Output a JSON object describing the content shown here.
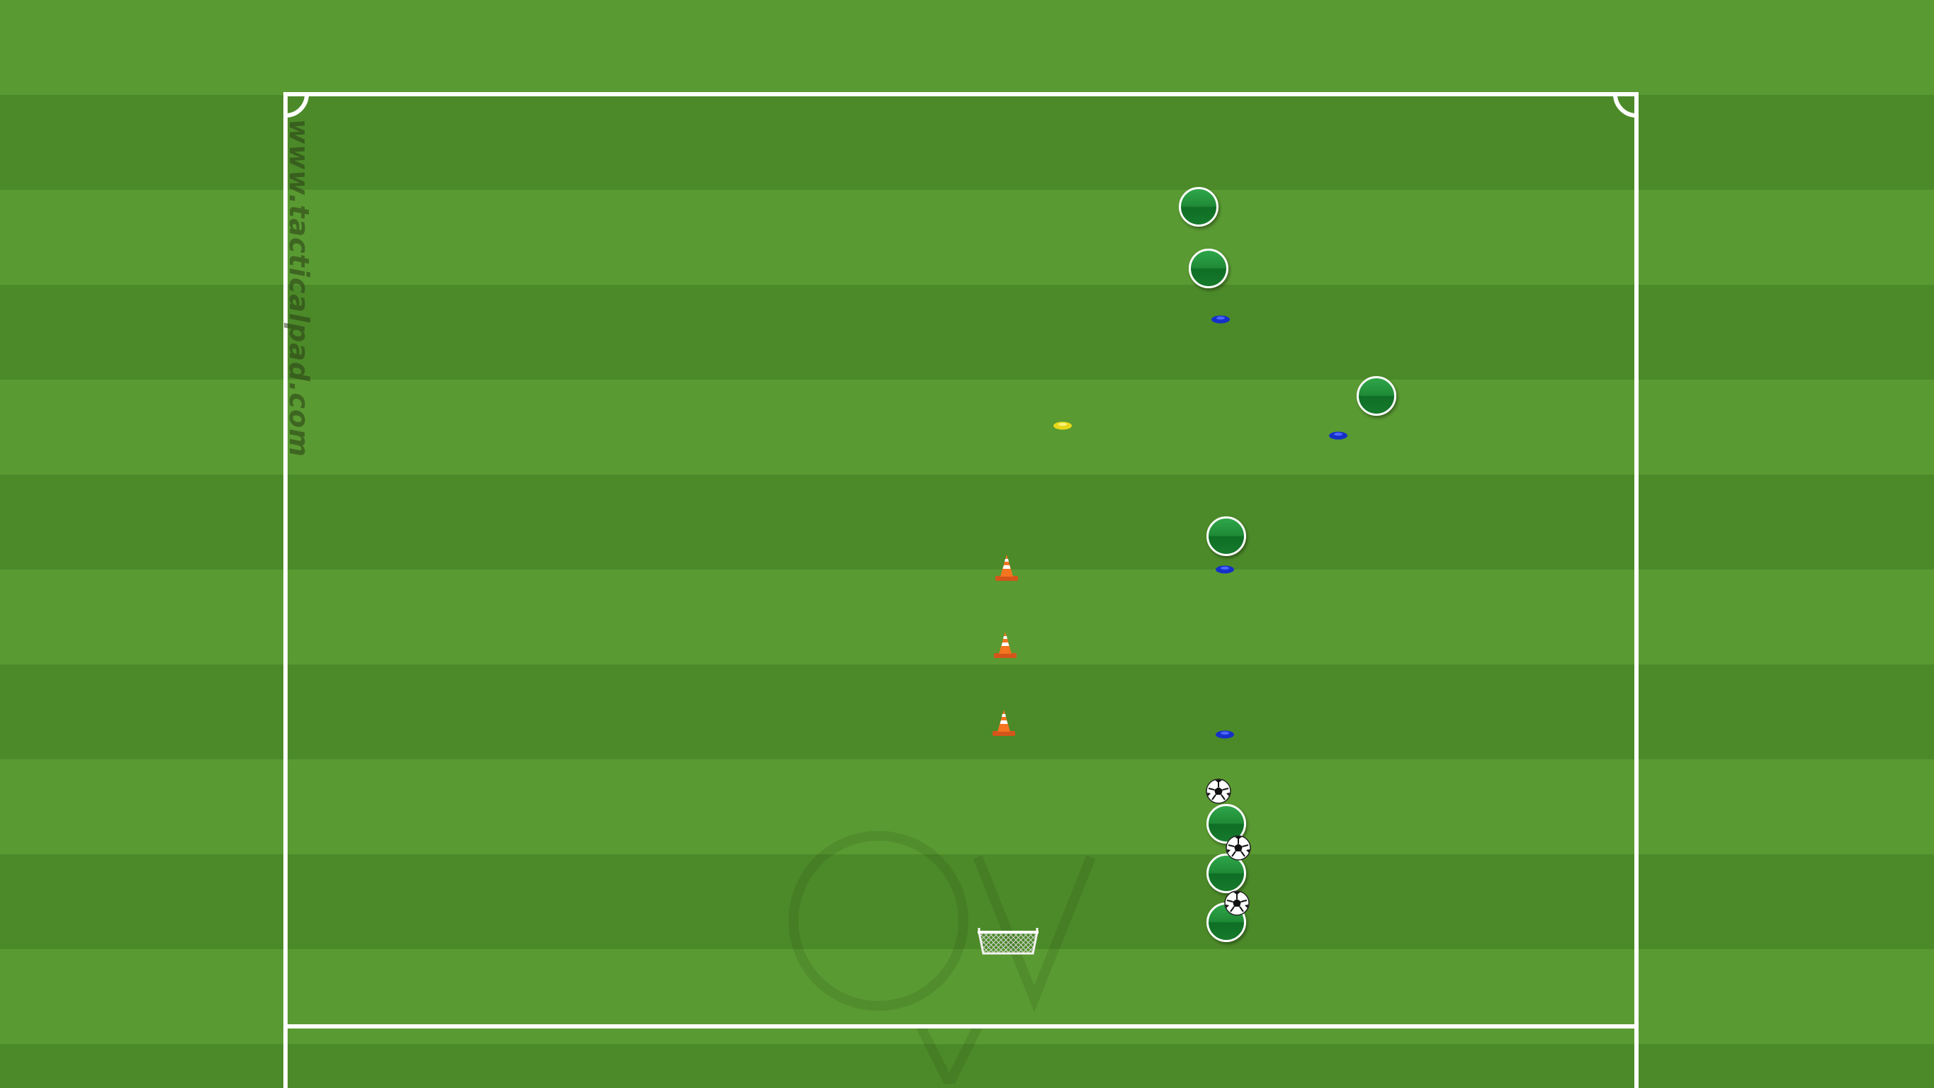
{
  "watermark": "www.tacticalpad.com",
  "colors": {
    "grass_light": "#5a9a32",
    "grass_dark": "#4c8a29",
    "lines": "#ffffff",
    "player": "#1f8a36",
    "disc_blue": "#1530c8",
    "disc_yellow": "#f0e020",
    "cone": "#f06a1c"
  },
  "items": {
    "players": [
      "player",
      "player",
      "player",
      "player",
      "player",
      "player",
      "player"
    ],
    "discs": [
      "blue-disc",
      "blue-disc",
      "blue-disc",
      "blue-disc",
      "yellow-disc"
    ],
    "cones": [
      "orange-cone",
      "orange-cone",
      "orange-cone"
    ],
    "balls": [
      "soccer-ball",
      "soccer-ball",
      "soccer-ball"
    ],
    "goal": "mini-goal"
  }
}
